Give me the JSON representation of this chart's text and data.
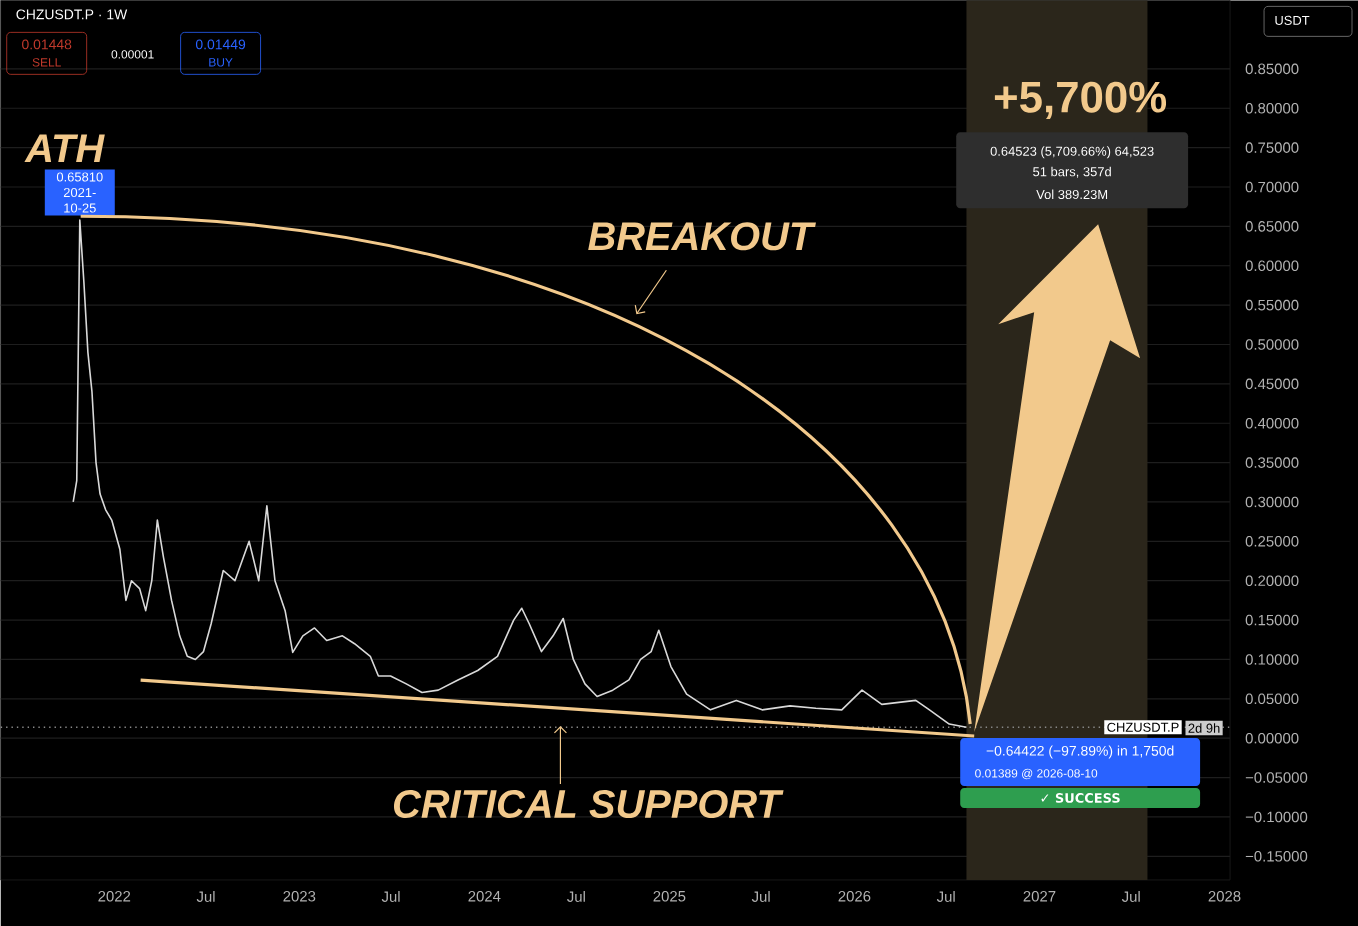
{
  "chart_data": {
    "type": "line",
    "title": "CHZUSDT.P · 1W",
    "color": "#d9d9d9",
    "x": [
      "2021-10-12",
      "2021-10-19",
      "2021-10-25",
      "2021-11-02",
      "2021-11-10",
      "2021-11-18",
      "2021-11-26",
      "2021-12-04",
      "2021-12-15",
      "2021-12-27",
      "2022-01-12",
      "2022-01-24",
      "2022-02-04",
      "2022-02-20",
      "2022-03-04",
      "2022-03-16",
      "2022-03-27",
      "2022-04-08",
      "2022-04-24",
      "2022-05-10",
      "2022-05-25",
      "2022-06-10",
      "2022-06-26",
      "2022-07-11",
      "2022-08-04",
      "2022-08-27",
      "2022-09-24",
      "2022-10-13",
      "2022-10-29",
      "2022-11-14",
      "2022-12-04",
      "2022-12-19",
      "2023-01-08",
      "2023-01-31",
      "2023-02-24",
      "2023-03-27",
      "2023-04-20",
      "2023-05-21",
      "2023-06-06",
      "2023-06-30",
      "2023-07-31",
      "2023-08-31",
      "2023-10-02",
      "2023-11-10",
      "2023-12-19",
      "2024-01-27",
      "2024-02-28",
      "2024-03-15",
      "2024-03-30",
      "2024-04-23",
      "2024-05-16",
      "2024-06-05",
      "2024-06-25",
      "2024-07-18",
      "2024-08-11",
      "2024-09-11",
      "2024-10-13",
      "2024-11-05",
      "2024-11-26",
      "2024-12-11",
      "2025-01-04",
      "2025-02-04",
      "2025-03-23",
      "2025-05-13",
      "2025-07-03",
      "2025-08-27",
      "2025-10-17",
      "2025-12-07",
      "2026-01-16",
      "2026-02-24",
      "2026-05-02",
      "2026-05-29",
      "2026-07-07",
      "2026-08-10"
    ],
    "values": [
      0.3,
      0.327,
      0.6581,
      0.58,
      0.49,
      0.44,
      0.35,
      0.31,
      0.29,
      0.277,
      0.24,
      0.175,
      0.2,
      0.19,
      0.162,
      0.2,
      0.277,
      0.23,
      0.175,
      0.13,
      0.104,
      0.1,
      0.11,
      0.145,
      0.213,
      0.2,
      0.25,
      0.2,
      0.295,
      0.2,
      0.162,
      0.109,
      0.13,
      0.14,
      0.124,
      0.13,
      0.12,
      0.104,
      0.079,
      0.079,
      0.069,
      0.058,
      0.061,
      0.074,
      0.086,
      0.104,
      0.15,
      0.165,
      0.145,
      0.11,
      0.13,
      0.152,
      0.1,
      0.069,
      0.053,
      0.061,
      0.074,
      0.1,
      0.11,
      0.137,
      0.091,
      0.056,
      0.036,
      0.048,
      0.036,
      0.041,
      0.038,
      0.036,
      0.061,
      0.043,
      0.048,
      0.036,
      0.018,
      0.01389
    ],
    "xlim": [
      "2021-05-22",
      "2028-01-12"
    ],
    "xticks": [
      "2022",
      {
        "value": "2022-07",
        "label": "Jul"
      },
      "2023",
      {
        "value": "2023-07",
        "label": "Jul"
      },
      "2024",
      {
        "value": "2024-07",
        "label": "Jul"
      },
      "2025",
      {
        "value": "2025-07",
        "label": "Jul"
      },
      "2026",
      {
        "value": "2026-07",
        "label": "Jul"
      },
      "2027",
      {
        "value": "2027-07",
        "label": "Jul"
      },
      "2028"
    ],
    "ylim": [
      -0.18,
      0.937
    ],
    "yticks": [
      {
        "value": -0.15,
        "label": "−0.15000"
      },
      {
        "value": -0.1,
        "label": "−0.10000"
      },
      {
        "value": -0.05,
        "label": "−0.05000"
      },
      {
        "value": 0,
        "label": "0.00000"
      },
      {
        "value": 0.05,
        "label": "0.05000"
      },
      {
        "value": 0.1,
        "label": "0.10000"
      },
      {
        "value": 0.15,
        "label": "0.15000"
      },
      {
        "value": 0.2,
        "label": "0.20000"
      },
      {
        "value": 0.25,
        "label": "0.25000"
      },
      {
        "value": 0.3,
        "label": "0.30000"
      },
      {
        "value": 0.35,
        "label": "0.35000"
      },
      {
        "value": 0.4,
        "label": "0.40000"
      },
      {
        "value": 0.45,
        "label": "0.45000"
      },
      {
        "value": 0.5,
        "label": "0.50000"
      },
      {
        "value": 0.55,
        "label": "0.55000"
      },
      {
        "value": 0.6,
        "label": "0.60000"
      },
      {
        "value": 0.65,
        "label": "0.65000"
      },
      {
        "value": 0.7,
        "label": "0.70000"
      },
      {
        "value": 0.75,
        "label": "0.75000"
      },
      {
        "value": 0.8,
        "label": "0.80000"
      },
      {
        "value": 0.85,
        "label": "0.85000"
      }
    ],
    "grid": "y",
    "ref_lines": [
      {
        "axis": "y",
        "value": 0.01389,
        "label": "CHZUSDT.P",
        "line_style": "dotted",
        "color": "#8a8a8a"
      }
    ],
    "bands": [
      {
        "axis": "x",
        "from": "2026-08-10",
        "to": "2027-08-02",
        "color": "#2b261b"
      }
    ],
    "annotations": [
      "ATH",
      {
        "text": "0.65810 2021-10-25",
        "x": "2021-10-25",
        "y": 0.6581
      },
      "BREAKOUT",
      "CRITICAL  SUPPORT",
      "+5,700%",
      "0.64523 (5,709.66%) 64,523",
      "51 bars, 357d",
      "Vol 389.23M",
      "−0.64422 (−97.89%) in 1,750d",
      "0.01389 @ 2026-08-10",
      "✓ SUCCESS",
      "USDT",
      "0.01448",
      "SELL",
      "0.00001",
      "0.01449",
      "BUY",
      "2d 9h"
    ]
  }
}
